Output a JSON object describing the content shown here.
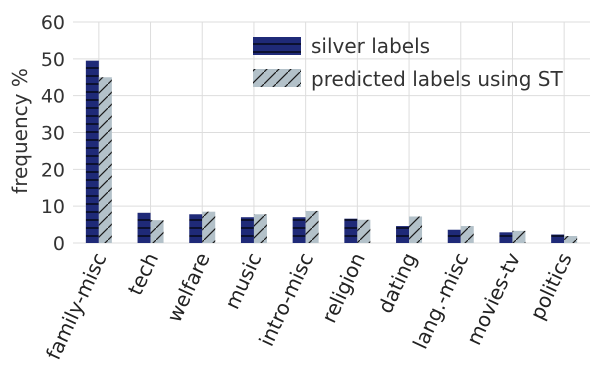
{
  "chart_data": {
    "type": "bar",
    "categories": [
      "family-misc",
      "tech",
      "welfare",
      "music",
      "intro-misc",
      "religion",
      "dating",
      "lang.-misc",
      "movies-tv",
      "politics"
    ],
    "series": [
      {
        "name": "silver labels",
        "values": [
          49.5,
          8.2,
          7.8,
          7.0,
          7.0,
          6.6,
          4.6,
          3.6,
          2.9,
          2.3
        ],
        "color": "#1f2a78",
        "hatch": "horizontal"
      },
      {
        "name": "predicted labels using ST",
        "values": [
          45.0,
          6.2,
          8.5,
          7.8,
          8.7,
          6.3,
          7.2,
          4.6,
          3.3,
          1.9
        ],
        "color": "#b3c1c9",
        "hatch": "diagonal"
      }
    ],
    "ylabel": "frequency %",
    "ylim": [
      0,
      60
    ],
    "yticks": [
      0,
      10,
      20,
      30,
      40,
      50,
      60
    ],
    "grid": true,
    "legend_position": "top-right"
  }
}
